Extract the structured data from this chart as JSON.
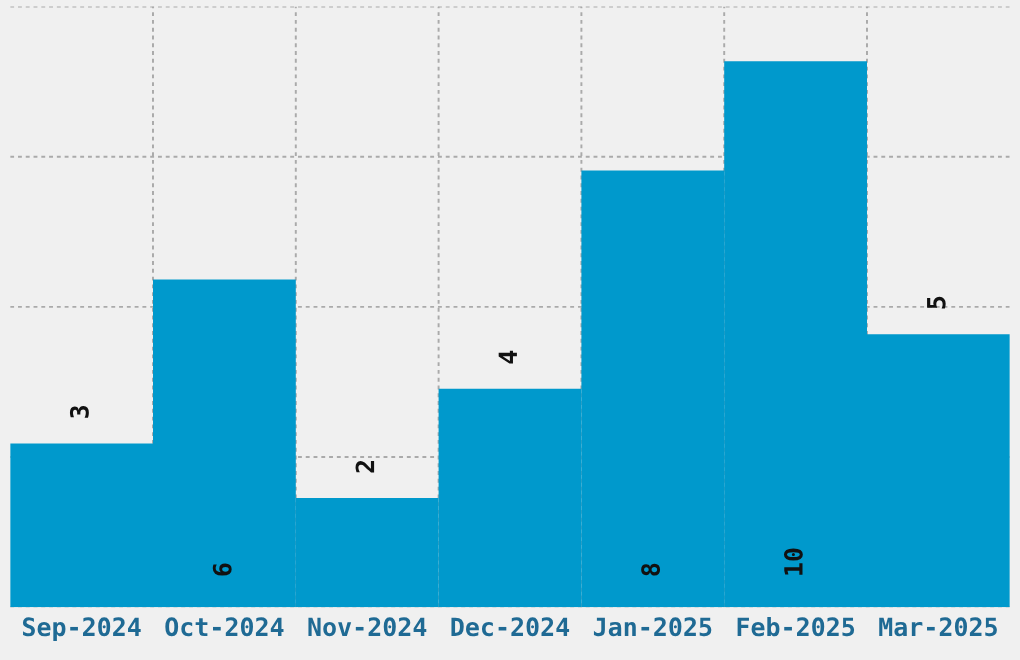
{
  "chart_data": {
    "type": "bar",
    "categories": [
      "Sep-2024",
      "Oct-2024",
      "Nov-2024",
      "Dec-2024",
      "Jan-2025",
      "Feb-2025",
      "Mar-2025"
    ],
    "values": [
      3,
      6,
      2,
      4,
      8,
      10,
      5
    ],
    "color": "#0099cc",
    "data_labels": true,
    "ylim": [
      0,
      11
    ],
    "yticks": [
      {
        "value": 0,
        "label": null
      },
      {
        "value": 2.75,
        "label": null
      },
      {
        "value": 5.5,
        "label": null
      },
      {
        "value": 8.25,
        "label": null
      },
      {
        "value": 11,
        "label": null
      }
    ],
    "tick_labels": "x",
    "grid": true
  }
}
